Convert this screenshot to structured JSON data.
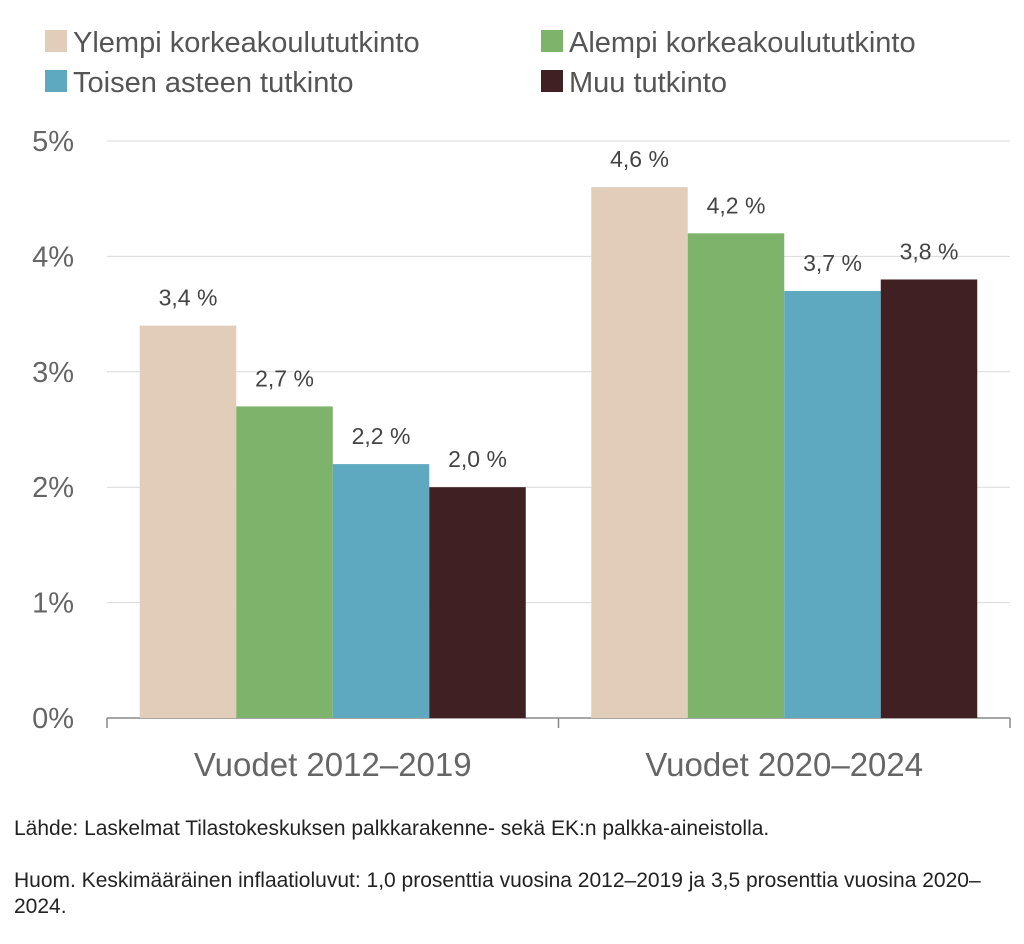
{
  "chart_data": {
    "type": "bar",
    "categories": [
      "Vuodet 2012–2019",
      "Vuodet 2020–2024"
    ],
    "series": [
      {
        "name": "Ylempi korkeakoulututkinto",
        "color": "#e2cdbb",
        "values": [
          3.4,
          4.6
        ],
        "labels": [
          "3,4 %",
          "4,6 %"
        ]
      },
      {
        "name": "Alempi korkeakoulututkinto",
        "color": "#7db36a",
        "values": [
          2.7,
          4.2
        ],
        "labels": [
          "2,7 %",
          "4,2 %"
        ]
      },
      {
        "name": "Toisen asteen tutkinto",
        "color": "#5ea8c0",
        "values": [
          2.2,
          3.7
        ],
        "labels": [
          "2,2 %",
          "3,7 %"
        ]
      },
      {
        "name": "Muu tutkinto",
        "color": "#402022",
        "values": [
          2.0,
          3.8
        ],
        "labels": [
          "2,0 %",
          "3,8 %"
        ]
      }
    ],
    "ylim": [
      0,
      5
    ],
    "yticks": [
      "0%",
      "1%",
      "2%",
      "3%",
      "4%",
      "5%"
    ],
    "grid": true,
    "legend": "top",
    "xlabel": "",
    "ylabel": ""
  },
  "notes": {
    "source": "Lähde: Laskelmat Tilastokeskuksen palkkarakenne- sekä EK:n palkka-aineistolla.",
    "remark": "Huom. Keskimääräinen inflaatioluvut: 1,0 prosenttia vuosina 2012–2019 ja 3,5 prosenttia vuosina 2020–2024."
  }
}
